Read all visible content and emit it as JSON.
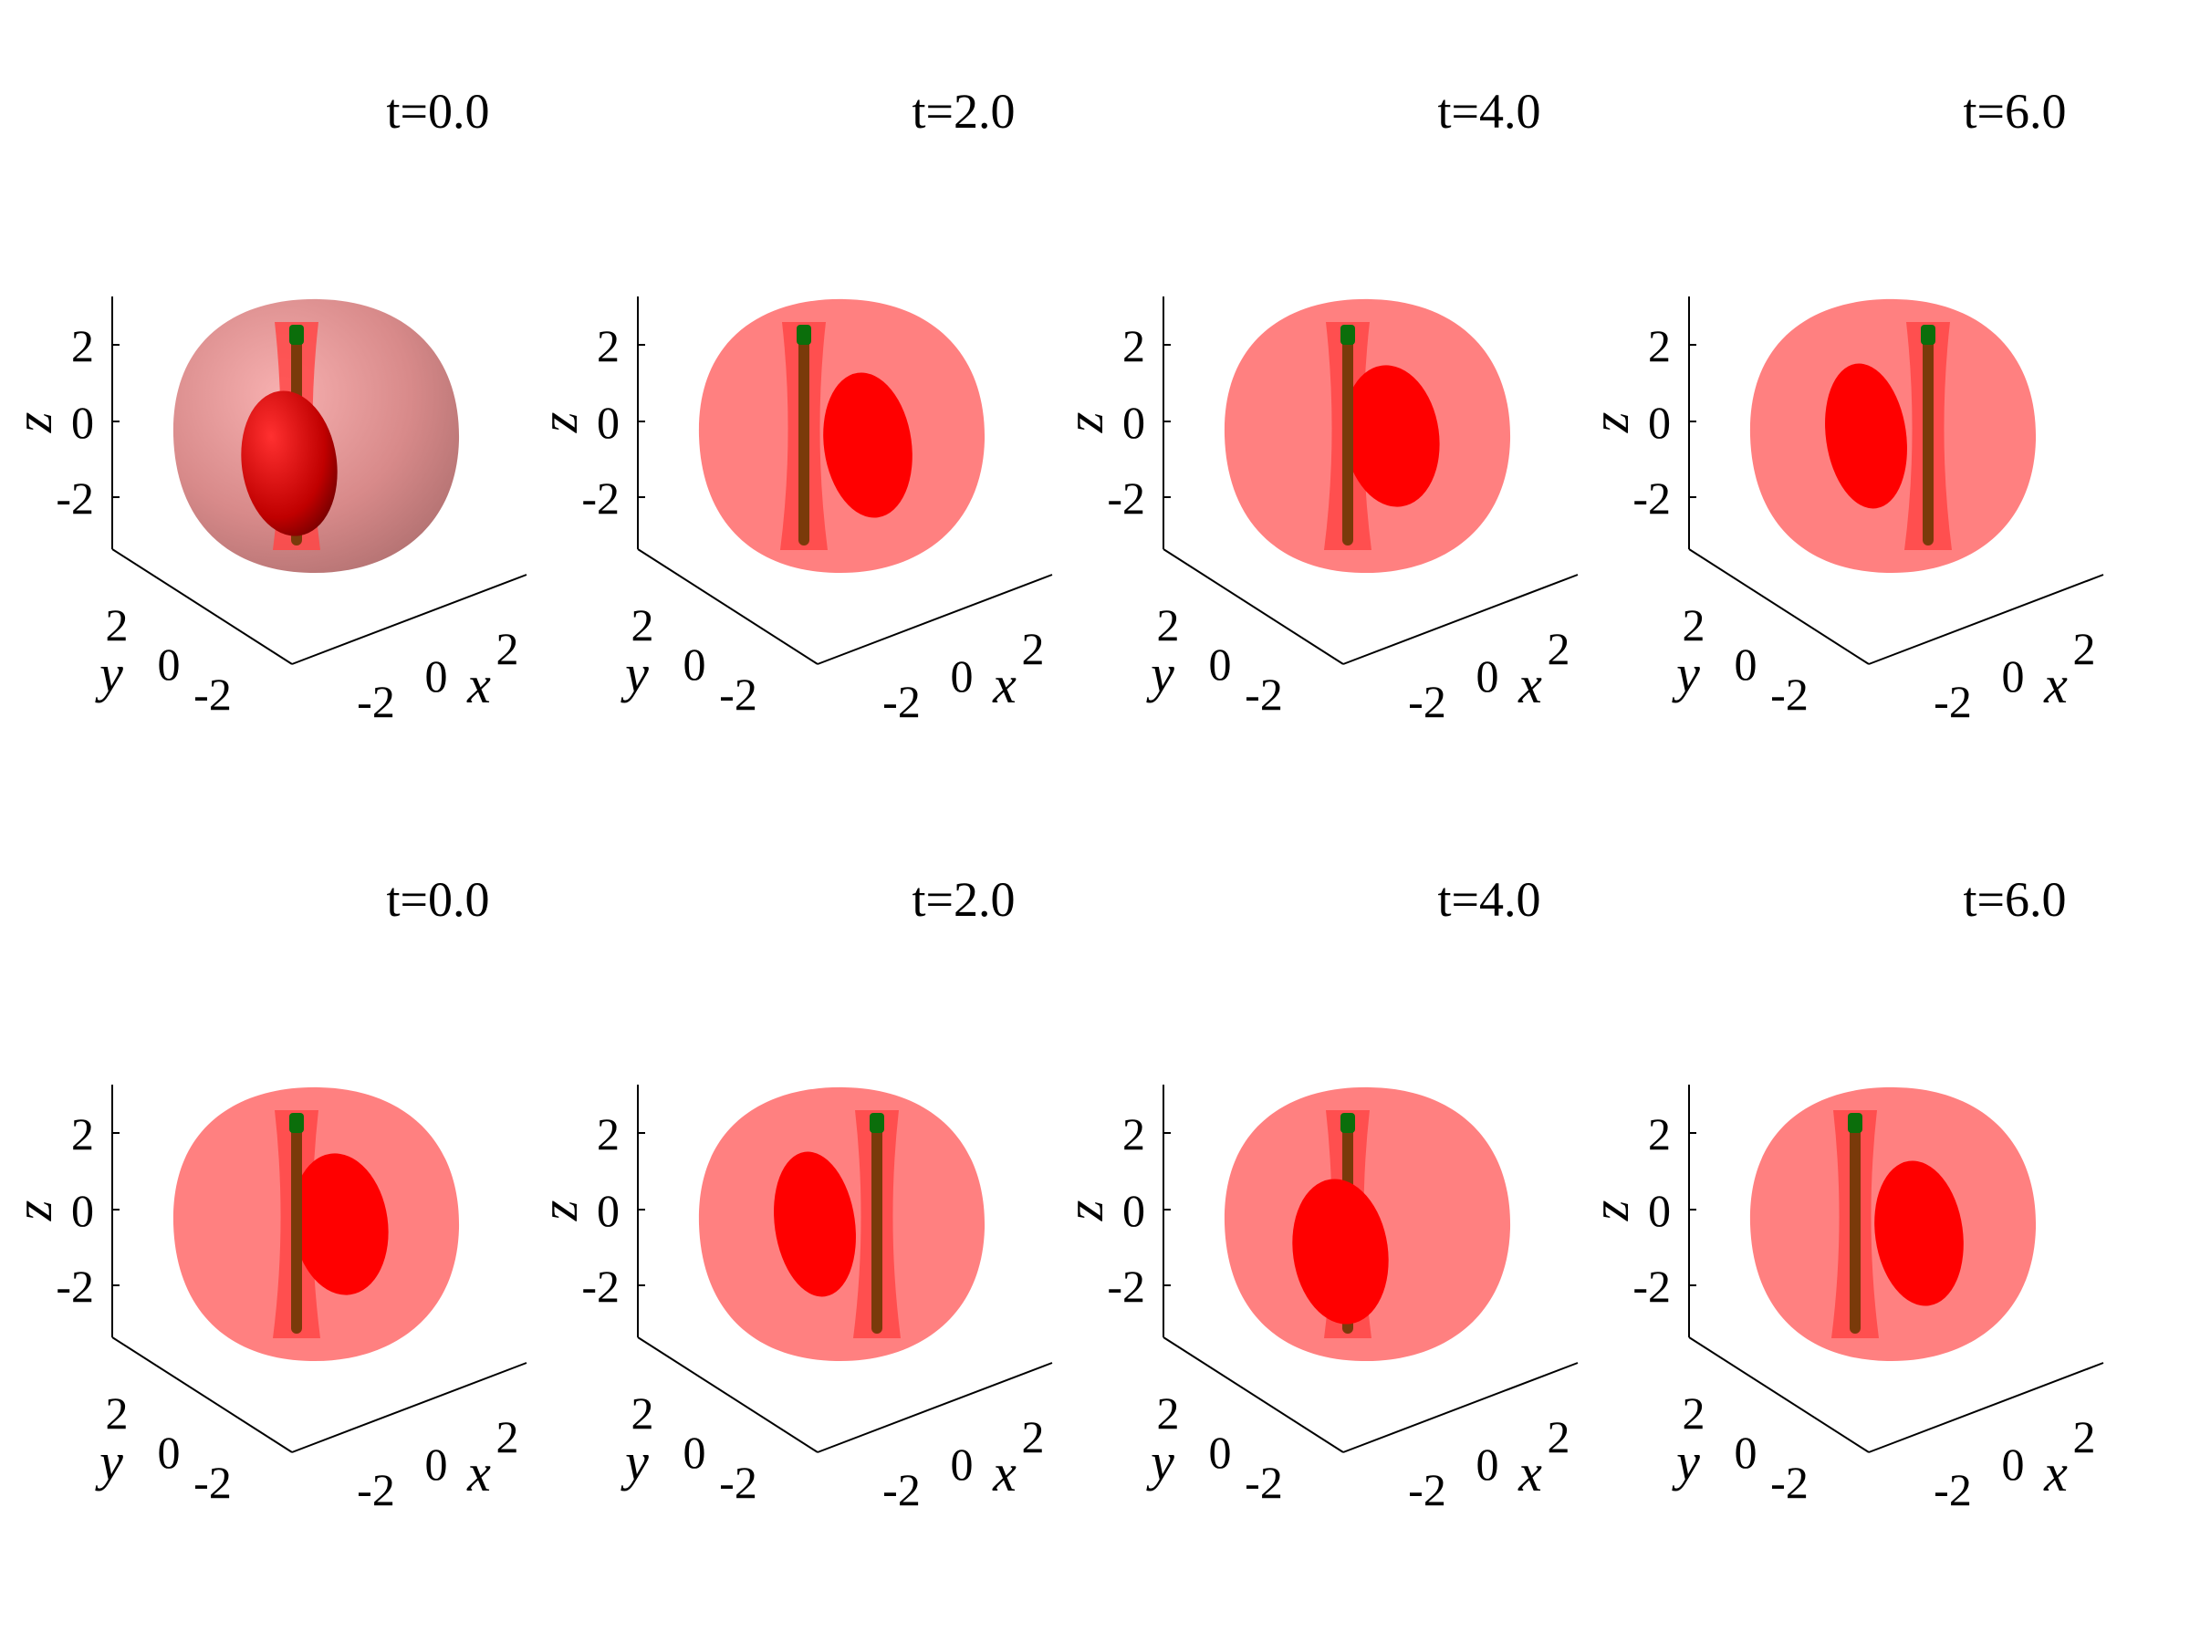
{
  "figure": {
    "rows": 2,
    "cols": 4,
    "axes": {
      "x_label": "x",
      "y_label": "y",
      "z_label": "z",
      "x_ticks": [
        "-2",
        "0",
        "2"
      ],
      "y_ticks": [
        "2",
        "0",
        "-2"
      ],
      "z_ticks": [
        "2",
        "0",
        "-2"
      ]
    },
    "colors": {
      "outer_shell": "#ff8080",
      "inner_shell": "#ff4646",
      "core": "#ff0000",
      "vortex_line": "#7a3a0a",
      "vortex_tip": "#0b6e0b"
    },
    "panels": [
      {
        "title": "t=0.0",
        "core_position": "front-left",
        "core_overlaps_line": true,
        "shaded": true
      },
      {
        "title": "t=2.0",
        "core_position": "right",
        "core_overlaps_line": false,
        "shaded": false
      },
      {
        "title": "t=4.0",
        "core_position": "center",
        "core_overlaps_line": true,
        "shaded": false
      },
      {
        "title": "t=6.0",
        "core_position": "left",
        "core_overlaps_line": false,
        "shaded": false
      },
      {
        "title": "t=0.0",
        "core_position": "center",
        "core_overlaps_line": true,
        "shaded": false
      },
      {
        "title": "t=2.0",
        "core_position": "left",
        "core_overlaps_line": false,
        "shaded": false
      },
      {
        "title": "t=4.0",
        "core_position": "front-left",
        "core_overlaps_line": true,
        "shaded": false
      },
      {
        "title": "t=6.0",
        "core_position": "right",
        "core_overlaps_line": false,
        "shaded": false
      }
    ]
  }
}
